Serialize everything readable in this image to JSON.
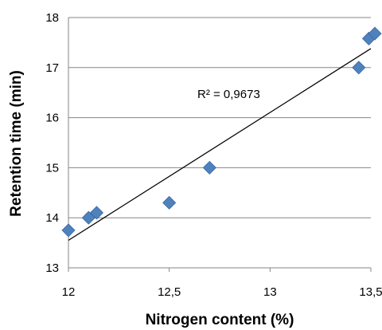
{
  "chart_data": {
    "type": "scatter",
    "xlabel": "Nitrogen content (%)",
    "ylabel": "Retention time (min)",
    "xlim": [
      12,
      13.5
    ],
    "ylim": [
      13,
      18
    ],
    "x_ticks": [
      "12",
      "12,5",
      "13",
      "13,5"
    ],
    "y_ticks": [
      "13",
      "14",
      "15",
      "16",
      "17",
      "18"
    ],
    "grid": "horizontal",
    "marker_color": "#4F81BD",
    "trendline": {
      "type": "linear",
      "x": [
        12.0,
        13.5
      ],
      "y": [
        13.55,
        17.38
      ],
      "label": "R² = 0,9673"
    },
    "points": [
      {
        "x": 12.0,
        "y": 13.75
      },
      {
        "x": 12.1,
        "y": 14.0
      },
      {
        "x": 12.14,
        "y": 14.1
      },
      {
        "x": 12.5,
        "y": 14.3
      },
      {
        "x": 12.7,
        "y": 15.0
      },
      {
        "x": 13.44,
        "y": 17.0
      },
      {
        "x": 13.49,
        "y": 17.58
      },
      {
        "x": 13.52,
        "y": 17.68
      }
    ]
  }
}
